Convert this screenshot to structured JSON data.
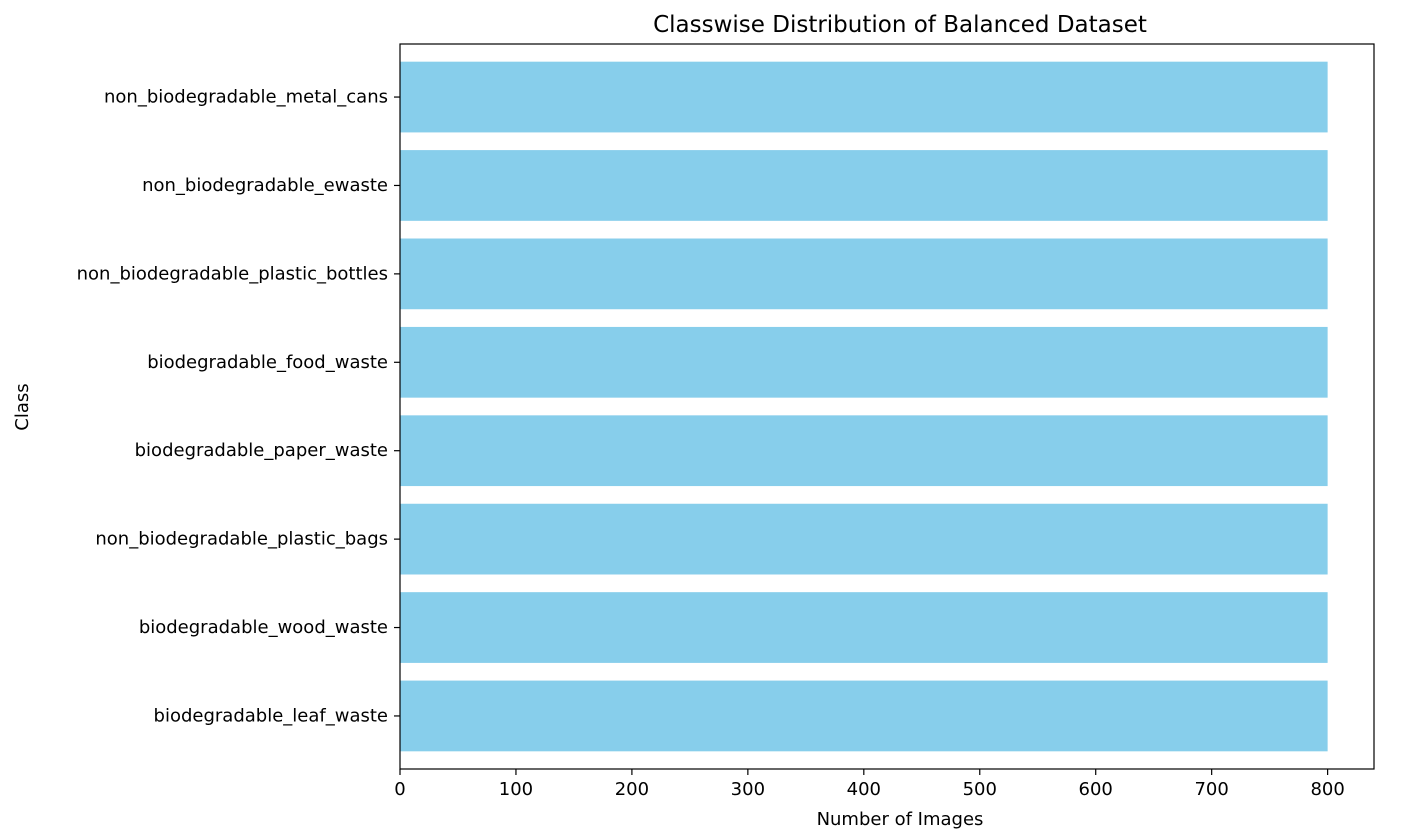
{
  "chart_data": {
    "type": "bar",
    "orientation": "horizontal",
    "title": "Classwise Distribution of Balanced Dataset",
    "xlabel": "Number of Images",
    "ylabel": "Class",
    "categories": [
      "biodegradable_leaf_waste",
      "biodegradable_wood_waste",
      "non_biodegradable_plastic_bags",
      "biodegradable_paper_waste",
      "biodegradable_food_waste",
      "non_biodegradable_plastic_bottles",
      "non_biodegradable_ewaste",
      "non_biodegradable_metal_cans"
    ],
    "values": [
      800,
      800,
      800,
      800,
      800,
      800,
      800,
      800
    ],
    "xlim": [
      0,
      840
    ],
    "xticks": [
      0,
      100,
      200,
      300,
      400,
      500,
      600,
      700,
      800
    ],
    "bar_color": "#87CEEB",
    "grid": false,
    "legend": "none"
  }
}
